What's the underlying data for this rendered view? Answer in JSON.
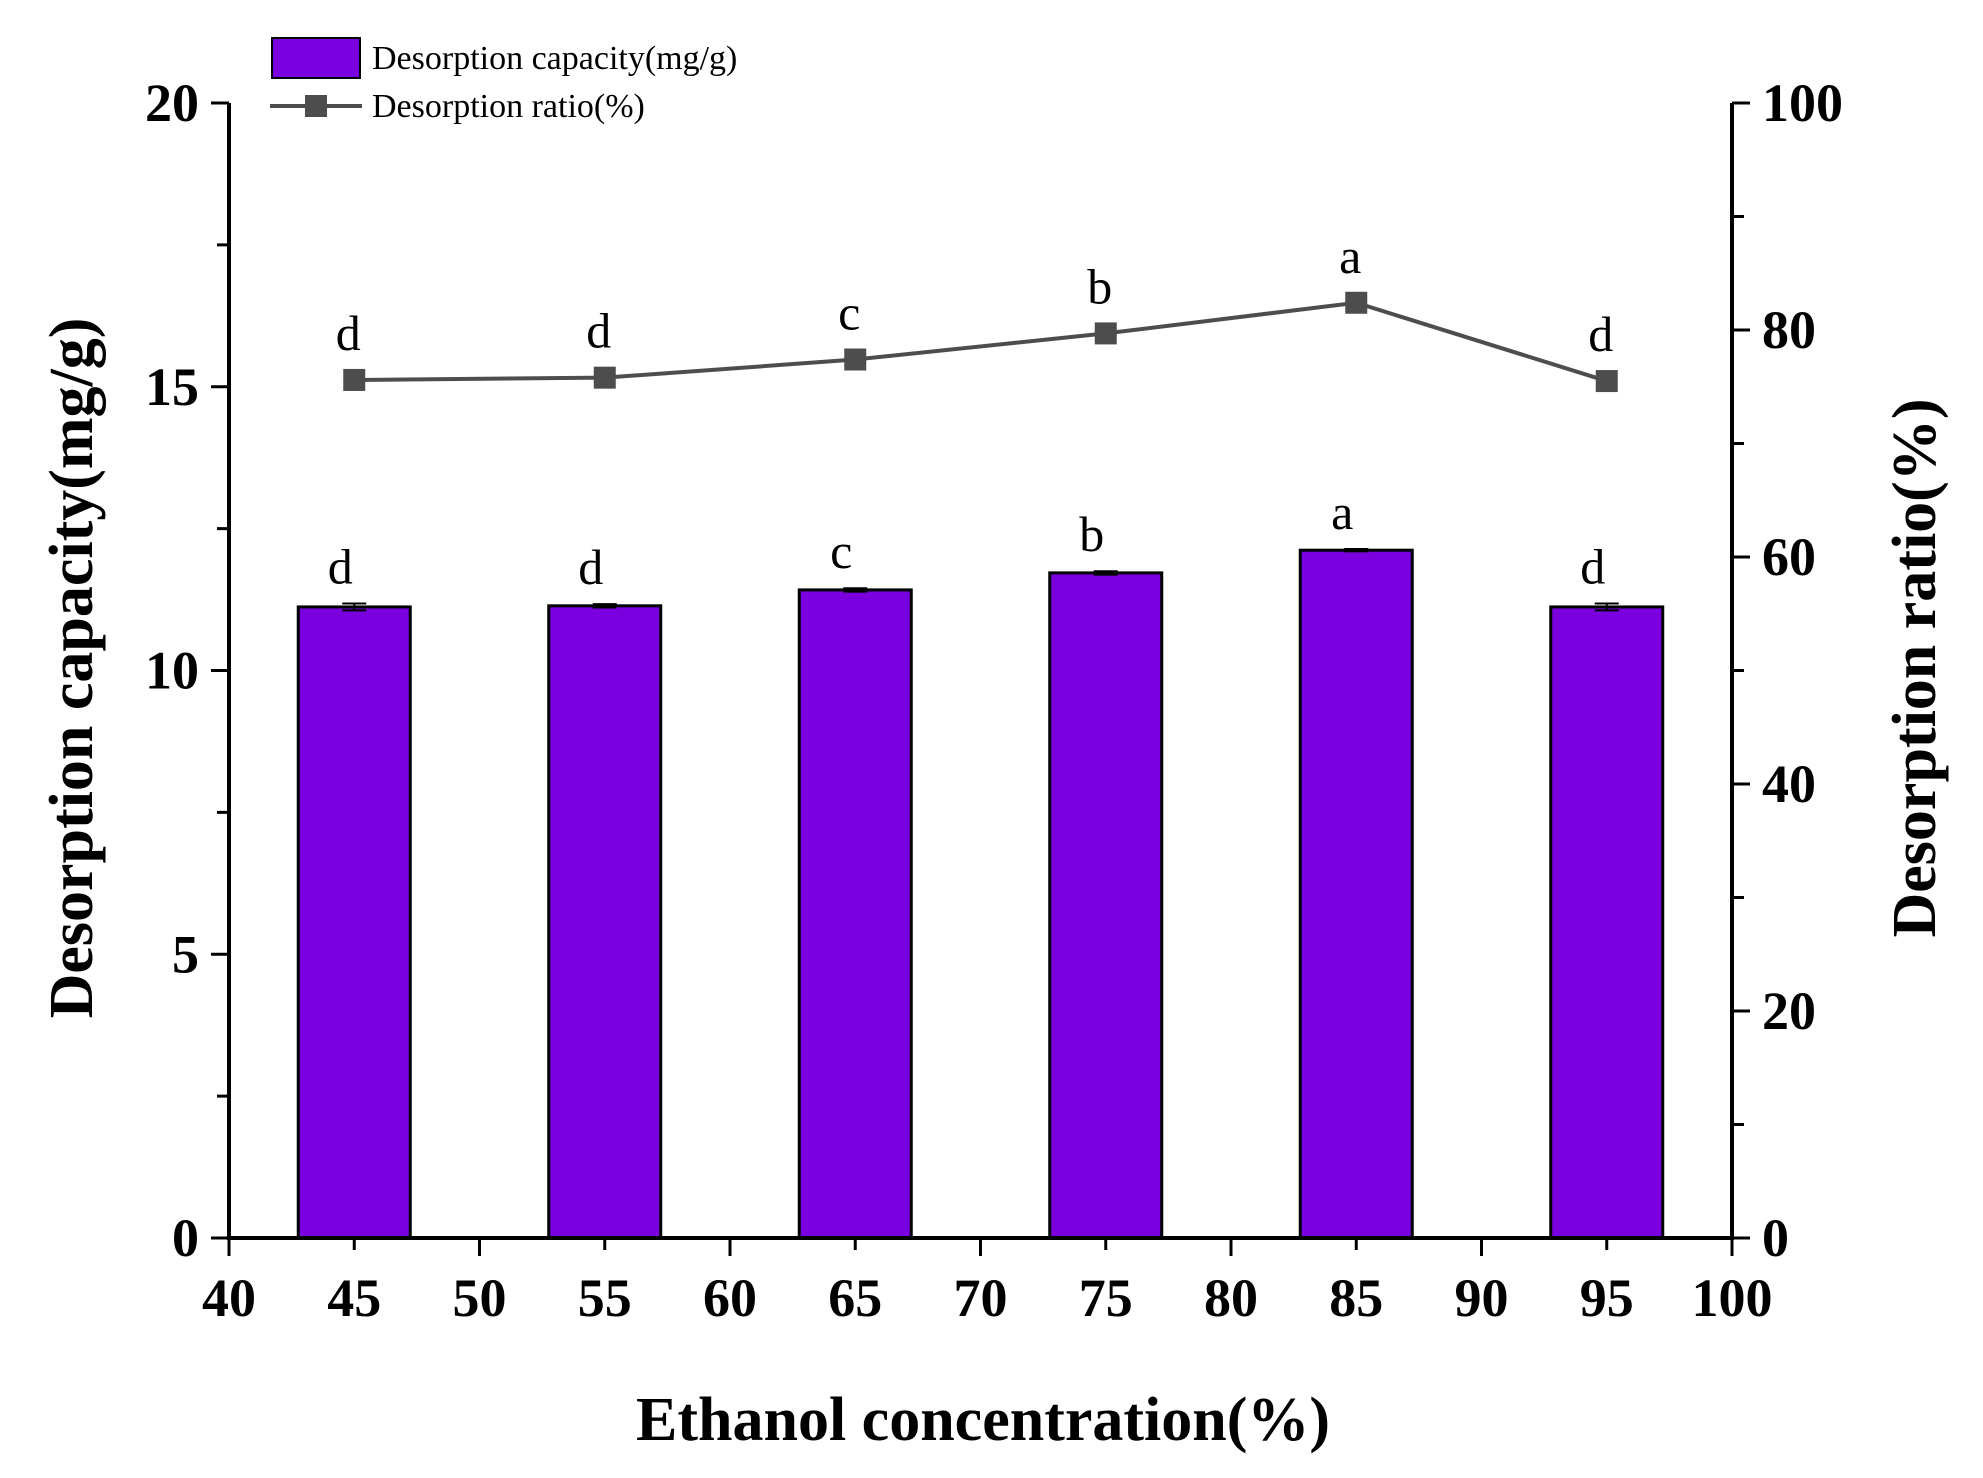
{
  "chart_data": {
    "type": "bar+line",
    "xlabel": "Ethanol concentration(%)",
    "xlim": [
      40,
      100
    ],
    "xticks": [
      "40",
      "45",
      "50",
      "55",
      "60",
      "65",
      "70",
      "75",
      "80",
      "85",
      "90",
      "95",
      "100"
    ],
    "ylabel_left": "Desorption capacity(mg/g)",
    "ylim_left": [
      0,
      20
    ],
    "yticks_left": [
      "0",
      "5",
      "10",
      "15",
      "20"
    ],
    "ylabel_right": "Desorption ratio(%)",
    "ylim_right": [
      0,
      100
    ],
    "yticks_right": [
      "0",
      "20",
      "40",
      "60",
      "80",
      "100"
    ],
    "categories": [
      45,
      55,
      65,
      75,
      85,
      95
    ],
    "series": [
      {
        "name": "Desorption capacity(mg/g)",
        "kind": "bar",
        "axis": "left",
        "color": "#7B00E0",
        "values": [
          11.12,
          11.14,
          11.42,
          11.72,
          12.12,
          11.12
        ],
        "errors": [
          0.06,
          0.03,
          0.03,
          0.03,
          0.02,
          0.06
        ],
        "labels": [
          "d",
          "d",
          "c",
          "b",
          "a",
          "d"
        ]
      },
      {
        "name": "Desorption ratio(%)",
        "kind": "line",
        "axis": "right",
        "color": "#4d4d4d",
        "marker": "square",
        "values": [
          75.6,
          75.8,
          77.4,
          79.7,
          82.4,
          75.5
        ],
        "labels": [
          "d",
          "d",
          "c",
          "b",
          "a",
          "d"
        ]
      }
    ],
    "legend": [
      {
        "label": "Desorption capacity(mg/g)",
        "kind": "bar",
        "color": "#7B00E0"
      },
      {
        "label": "Desorption ratio(%)",
        "kind": "line",
        "color": "#4d4d4d"
      }
    ],
    "legend_position": "top-left",
    "grid": false
  }
}
